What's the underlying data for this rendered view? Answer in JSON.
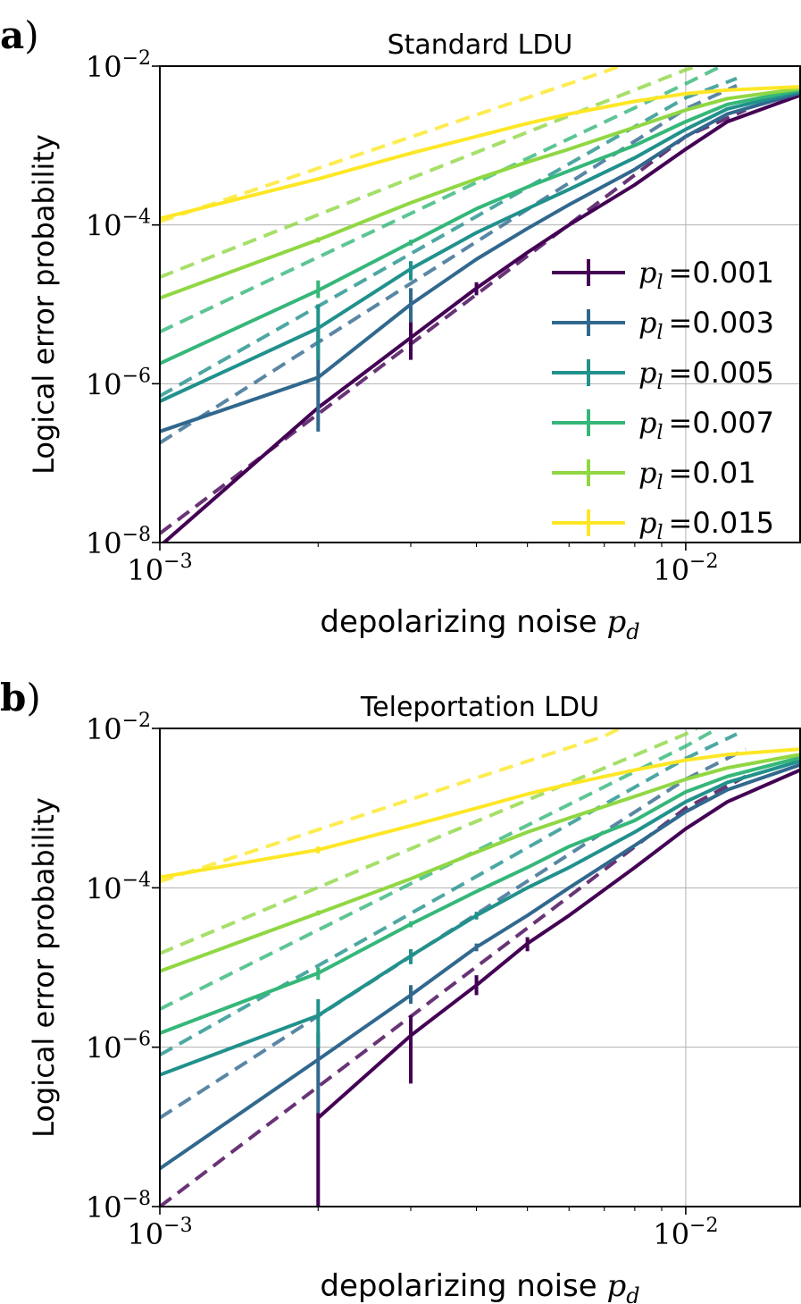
{
  "chart_data": [
    {
      "panel_label": "a)",
      "type": "line",
      "title": "Standard LDU",
      "xlabel_text": "depolarizing noise ",
      "xlabel_math": "p_d",
      "ylabel": "Logical error probability",
      "xscale": "log",
      "yscale": "log",
      "xlim": [
        0.001,
        0.0165
      ],
      "ylim": [
        1e-08,
        0.01
      ],
      "xticks": [
        {
          "value": 0.001,
          "base": "10",
          "exp": "−3"
        },
        {
          "value": 0.01,
          "base": "10",
          "exp": "−2"
        }
      ],
      "yticks": [
        {
          "value": 1e-08,
          "base": "10",
          "exp": "−8"
        },
        {
          "value": 1e-06,
          "base": "10",
          "exp": "−6"
        },
        {
          "value": 0.0001,
          "base": "10",
          "exp": "−4"
        },
        {
          "value": 0.01,
          "base": "10",
          "exp": "−2"
        }
      ],
      "grid": true,
      "legend_position": "lower-right",
      "series": [
        {
          "name": "0.001",
          "color": "#440154",
          "measured": [
            [
              0.001,
              9e-09
            ],
            [
              0.002,
              5e-07
            ],
            [
              0.003,
              3.8e-06
            ],
            [
              0.004,
              1.6e-05
            ],
            [
              0.005,
              4.5e-05
            ],
            [
              0.006,
              0.0001
            ],
            [
              0.008,
              0.00032
            ],
            [
              0.01,
              0.0009
            ],
            [
              0.012,
              0.002
            ],
            [
              0.0165,
              0.0043
            ]
          ],
          "fit": [
            [
              0.001,
              1.3e-08
            ],
            [
              0.01,
              0.0013
            ],
            [
              0.013,
              0.0028
            ]
          ],
          "errorbars": [
            [
              0.003,
              2e-06,
              6e-06
            ],
            [
              0.004,
              1.3e-05,
              1.9e-05
            ]
          ]
        },
        {
          "name": "0.003",
          "color": "#31688e",
          "measured": [
            [
              0.001,
              2.5e-07
            ],
            [
              0.002,
              1.2e-06
            ],
            [
              0.003,
              1e-05
            ],
            [
              0.004,
              3.7e-05
            ],
            [
              0.005,
              9e-05
            ],
            [
              0.006,
              0.00018
            ],
            [
              0.008,
              0.0005
            ],
            [
              0.01,
              0.0013
            ],
            [
              0.012,
              0.0025
            ],
            [
              0.0165,
              0.0046
            ]
          ],
          "fit": [
            [
              0.001,
              1.8e-07
            ],
            [
              0.01,
              0.0029
            ],
            [
              0.0125,
              0.0057
            ]
          ],
          "errorbars": [
            [
              0.002,
              2.5e-07,
              5e-06
            ],
            [
              0.003,
              6e-06,
              1.6e-05
            ]
          ]
        },
        {
          "name": "0.005",
          "color": "#21918c",
          "measured": [
            [
              0.001,
              6e-07
            ],
            [
              0.002,
              5e-06
            ],
            [
              0.003,
              2.8e-05
            ],
            [
              0.004,
              8e-05
            ],
            [
              0.005,
              0.00016
            ],
            [
              0.006,
              0.00028
            ],
            [
              0.008,
              0.0007
            ],
            [
              0.01,
              0.0016
            ],
            [
              0.012,
              0.0029
            ],
            [
              0.0165,
              0.0048
            ]
          ],
          "fit": [
            [
              0.001,
              7e-07
            ],
            [
              0.01,
              0.004
            ],
            [
              0.0125,
              0.007
            ]
          ],
          "errorbars": [
            [
              0.002,
              2e-06,
              1e-05
            ],
            [
              0.003,
              2e-05,
              3.5e-05
            ]
          ]
        },
        {
          "name": "0.007",
          "color": "#35b779",
          "measured": [
            [
              0.001,
              1.8e-06
            ],
            [
              0.002,
              1.5e-05
            ],
            [
              0.003,
              6e-05
            ],
            [
              0.004,
              0.00016
            ],
            [
              0.005,
              0.0003
            ],
            [
              0.006,
              0.00048
            ],
            [
              0.008,
              0.001
            ],
            [
              0.01,
              0.002
            ],
            [
              0.012,
              0.0033
            ],
            [
              0.0165,
              0.005
            ]
          ],
          "fit": [
            [
              0.001,
              4.5e-06
            ],
            [
              0.01,
              0.006
            ],
            [
              0.0115,
              0.0095
            ]
          ],
          "errorbars": [
            [
              0.002,
              1.2e-05,
              2e-05
            ],
            [
              0.003,
              5.5e-05,
              6.5e-05
            ]
          ]
        },
        {
          "name": "0.01",
          "color": "#90d743",
          "measured": [
            [
              0.001,
              1.2e-05
            ],
            [
              0.002,
              6.5e-05
            ],
            [
              0.003,
              0.00019
            ],
            [
              0.004,
              0.00038
            ],
            [
              0.005,
              0.00062
            ],
            [
              0.006,
              0.0009
            ],
            [
              0.008,
              0.0017
            ],
            [
              0.01,
              0.0028
            ],
            [
              0.012,
              0.0039
            ],
            [
              0.0165,
              0.0052
            ]
          ],
          "fit": [
            [
              0.001,
              2.2e-05
            ],
            [
              0.01,
              0.009
            ],
            [
              0.0105,
              0.01
            ]
          ],
          "errorbars": [
            [
              0.002,
              6e-05,
              7e-05
            ]
          ]
        },
        {
          "name": "0.015",
          "color": "#fde725",
          "measured": [
            [
              0.001,
              0.00012
            ],
            [
              0.002,
              0.00038
            ],
            [
              0.003,
              0.0008
            ],
            [
              0.004,
              0.0013
            ],
            [
              0.005,
              0.0019
            ],
            [
              0.006,
              0.0025
            ],
            [
              0.008,
              0.0036
            ],
            [
              0.01,
              0.0045
            ],
            [
              0.012,
              0.005
            ],
            [
              0.0165,
              0.0055
            ]
          ],
          "fit": [
            [
              0.001,
              0.00011
            ],
            [
              0.007,
              0.0085
            ],
            [
              0.0075,
              0.01
            ]
          ],
          "errorbars": [
            [
              0.001,
              0.00011,
              0.00013
            ]
          ]
        }
      ]
    },
    {
      "panel_label": "b)",
      "type": "line",
      "title": "Teleportation LDU",
      "xlabel_text": "depolarizing noise ",
      "xlabel_math": "p_d",
      "ylabel": "Logical error probability",
      "xscale": "log",
      "yscale": "log",
      "xlim": [
        0.001,
        0.0165
      ],
      "ylim": [
        1e-08,
        0.01
      ],
      "xticks": [
        {
          "value": 0.001,
          "base": "10",
          "exp": "−3"
        },
        {
          "value": 0.01,
          "base": "10",
          "exp": "−2"
        }
      ],
      "yticks": [
        {
          "value": 1e-08,
          "base": "10",
          "exp": "−8"
        },
        {
          "value": 1e-06,
          "base": "10",
          "exp": "−6"
        },
        {
          "value": 0.0001,
          "base": "10",
          "exp": "−4"
        },
        {
          "value": 0.01,
          "base": "10",
          "exp": "−2"
        }
      ],
      "grid": true,
      "legend_position": "none",
      "series": [
        {
          "name": "0.001",
          "color": "#440154",
          "measured": [
            [
              0.002,
              1.3e-07
            ],
            [
              0.003,
              1.4e-06
            ],
            [
              0.004,
              6e-06
            ],
            [
              0.005,
              2e-05
            ],
            [
              0.006,
              4.5e-05
            ],
            [
              0.008,
              0.00018
            ],
            [
              0.01,
              0.00055
            ],
            [
              0.012,
              0.0012
            ],
            [
              0.0165,
              0.003
            ]
          ],
          "fit": [
            [
              0.001,
              1e-08
            ],
            [
              0.01,
              0.001
            ],
            [
              0.013,
              0.0025
            ]
          ],
          "errorbars": [
            [
              0.002,
              1e-08,
              1.5e-07
            ],
            [
              0.003,
              3.5e-07,
              2.5e-06
            ],
            [
              0.004,
              4.5e-06,
              8e-06
            ],
            [
              0.005,
              1.6e-05,
              2.4e-05
            ]
          ]
        },
        {
          "name": "0.003",
          "color": "#31688e",
          "measured": [
            [
              0.001,
              3e-08
            ],
            [
              0.002,
              7e-07
            ],
            [
              0.003,
              4.5e-06
            ],
            [
              0.004,
              1.8e-05
            ],
            [
              0.005,
              4.5e-05
            ],
            [
              0.006,
              0.0001
            ],
            [
              0.008,
              0.00034
            ],
            [
              0.01,
              0.0009
            ],
            [
              0.012,
              0.0017
            ],
            [
              0.0165,
              0.0035
            ]
          ],
          "fit": [
            [
              0.001,
              1.3e-07
            ],
            [
              0.01,
              0.0023
            ],
            [
              0.013,
              0.0055
            ]
          ],
          "errorbars": [
            [
              0.002,
              1.5e-07,
              1.5e-06
            ],
            [
              0.003,
              3.5e-06,
              6e-06
            ],
            [
              0.004,
              1.6e-05,
              2e-05
            ]
          ]
        },
        {
          "name": "0.005",
          "color": "#21918c",
          "measured": [
            [
              0.001,
              4.5e-07
            ],
            [
              0.002,
              2.5e-06
            ],
            [
              0.003,
              1.4e-05
            ],
            [
              0.004,
              4.5e-05
            ],
            [
              0.005,
              0.0001
            ],
            [
              0.006,
              0.00018
            ],
            [
              0.008,
              0.0005
            ],
            [
              0.01,
              0.0012
            ],
            [
              0.012,
              0.0021
            ],
            [
              0.0165,
              0.0039
            ]
          ],
          "fit": [
            [
              0.001,
              8e-07
            ],
            [
              0.01,
              0.0042
            ],
            [
              0.0125,
              0.0085
            ]
          ],
          "errorbars": [
            [
              0.002,
              1e-06,
              4e-06
            ],
            [
              0.003,
              1.1e-05,
              1.7e-05
            ],
            [
              0.004,
              4e-05,
              5e-05
            ]
          ]
        },
        {
          "name": "0.007",
          "color": "#35b779",
          "measured": [
            [
              0.001,
              1.5e-06
            ],
            [
              0.002,
              8.5e-06
            ],
            [
              0.003,
              3.5e-05
            ],
            [
              0.004,
              9e-05
            ],
            [
              0.005,
              0.00018
            ],
            [
              0.006,
              0.00033
            ],
            [
              0.008,
              0.0007
            ],
            [
              0.01,
              0.0016
            ],
            [
              0.012,
              0.0025
            ],
            [
              0.0165,
              0.0043
            ]
          ],
          "fit": [
            [
              0.001,
              3e-06
            ],
            [
              0.01,
              0.006
            ],
            [
              0.0115,
              0.01
            ]
          ],
          "errorbars": [
            [
              0.002,
              7e-06,
              1e-05
            ],
            [
              0.003,
              3.2e-05,
              3.8e-05
            ]
          ]
        },
        {
          "name": "0.01",
          "color": "#90d743",
          "measured": [
            [
              0.001,
              9e-06
            ],
            [
              0.002,
              4.8e-05
            ],
            [
              0.003,
              0.00013
            ],
            [
              0.004,
              0.00028
            ],
            [
              0.005,
              0.0005
            ],
            [
              0.006,
              0.00075
            ],
            [
              0.008,
              0.0014
            ],
            [
              0.01,
              0.0023
            ],
            [
              0.012,
              0.0032
            ],
            [
              0.0165,
              0.0047
            ]
          ],
          "fit": [
            [
              0.001,
              1.5e-05
            ],
            [
              0.01,
              0.0085
            ],
            [
              0.0105,
              0.01
            ]
          ],
          "errorbars": [
            [
              0.002,
              4.5e-05,
              5.2e-05
            ]
          ]
        },
        {
          "name": "0.015",
          "color": "#fde725",
          "measured": [
            [
              0.001,
              0.000135
            ],
            [
              0.002,
              0.0003
            ],
            [
              0.003,
              0.0006
            ],
            [
              0.004,
              0.001
            ],
            [
              0.005,
              0.0015
            ],
            [
              0.006,
              0.002
            ],
            [
              0.008,
              0.003
            ],
            [
              0.01,
              0.004
            ],
            [
              0.012,
              0.0047
            ],
            [
              0.0165,
              0.0055
            ]
          ],
          "fit": [
            [
              0.001,
              0.00012
            ],
            [
              0.007,
              0.008
            ],
            [
              0.0075,
              0.01
            ]
          ],
          "errorbars": [
            [
              0.001,
              0.00012,
              0.00015
            ],
            [
              0.002,
              0.00027,
              0.00033
            ]
          ]
        }
      ]
    }
  ],
  "legend_label_math": "p_l",
  "legend_equals": "="
}
